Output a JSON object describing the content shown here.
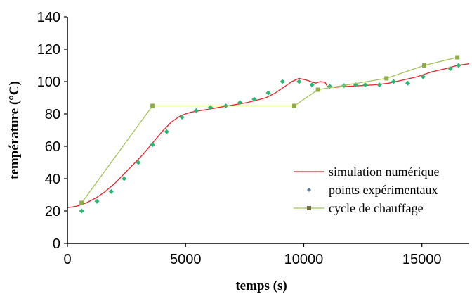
{
  "chart_data": {
    "type": "line",
    "xlabel": "temps (s)",
    "ylabel": "température (°C)",
    "xlim": [
      0,
      17000
    ],
    "ylim": [
      0,
      140
    ],
    "xticks": [
      0,
      5000,
      10000,
      15000
    ],
    "yticks": [
      0,
      20,
      40,
      60,
      80,
      100,
      120,
      140
    ],
    "xtick_labels": [
      "0",
      "5000",
      "10000",
      "15000"
    ],
    "ytick_labels": [
      "0",
      "20",
      "40",
      "60",
      "80",
      "100",
      "120",
      "140"
    ],
    "grid": false,
    "legend_position": "right",
    "series": [
      {
        "name": "simulation numérique",
        "style": "line",
        "color": "#e8202a",
        "x": [
          0,
          400,
          800,
          1200,
          1600,
          2000,
          2400,
          2800,
          3200,
          3600,
          4000,
          4400,
          4800,
          5200,
          5600,
          6000,
          6400,
          6800,
          7200,
          7600,
          8000,
          8400,
          8800,
          9200,
          9500,
          9800,
          10100,
          10300,
          10500,
          10700,
          10900,
          11000,
          11300,
          11800,
          12400,
          13000,
          13600,
          14200,
          14800,
          15400,
          16000,
          16500,
          17000
        ],
        "y": [
          22,
          23,
          25,
          28,
          32,
          37,
          43,
          49,
          55,
          62,
          69,
          75,
          79,
          81,
          82,
          83,
          84,
          85,
          86,
          87,
          88.5,
          90,
          93,
          97,
          100,
          102,
          101,
          100,
          99,
          100,
          99.5,
          97,
          96.5,
          97,
          97.5,
          98,
          99,
          101,
          103,
          106,
          108,
          110,
          111
        ]
      },
      {
        "name": "points expérimentaux",
        "style": "marker",
        "color": "#2bb673",
        "x": [
          600,
          1250,
          1850,
          2400,
          3000,
          3600,
          4200,
          4850,
          5450,
          6050,
          6700,
          7300,
          7900,
          8500,
          9100,
          9800,
          10350,
          11100,
          11700,
          12200,
          12600,
          13200,
          13800,
          14400,
          15050,
          16200,
          16550
        ],
        "y": [
          20,
          26,
          32,
          40,
          50,
          61,
          69,
          78,
          82,
          84,
          85,
          87,
          89,
          93,
          100,
          100,
          98,
          97,
          97.5,
          98,
          98,
          98,
          100,
          99,
          103,
          108,
          110
        ]
      },
      {
        "name": "cycle de chauffage",
        "style": "line-marker",
        "color": "#a3c15a",
        "marker_color": "#8eae45",
        "x": [
          600,
          3600,
          9600,
          10600,
          13500,
          15100,
          16500
        ],
        "y": [
          25,
          85,
          85,
          95,
          102,
          110,
          115
        ]
      }
    ]
  }
}
